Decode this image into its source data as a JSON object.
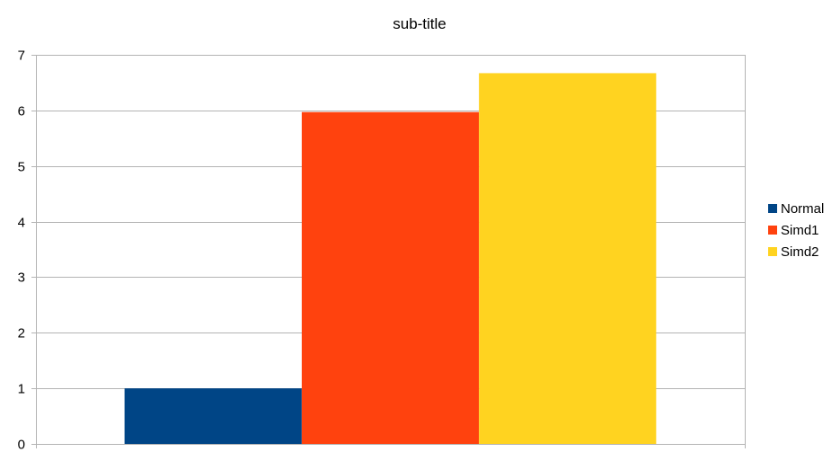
{
  "chart_data": {
    "type": "bar",
    "title": "sub-title",
    "xlabel": "",
    "ylabel": "",
    "categories": [
      ""
    ],
    "series": [
      {
        "name": "Normal",
        "values": [
          1.0
        ],
        "color": "#004586"
      },
      {
        "name": "Simd1",
        "values": [
          5.97
        ],
        "color": "#ff420e"
      },
      {
        "name": "Simd2",
        "values": [
          6.67
        ],
        "color": "#ffd320"
      }
    ],
    "ylim": [
      0,
      7
    ],
    "yticks": [
      "0",
      "1",
      "2",
      "3",
      "4",
      "5",
      "6",
      "7"
    ],
    "grid": true,
    "legend_position": "right",
    "colors": {
      "grid": "#b3b3b3",
      "axis": "#b3b3b3",
      "background": "#ffffff"
    }
  }
}
